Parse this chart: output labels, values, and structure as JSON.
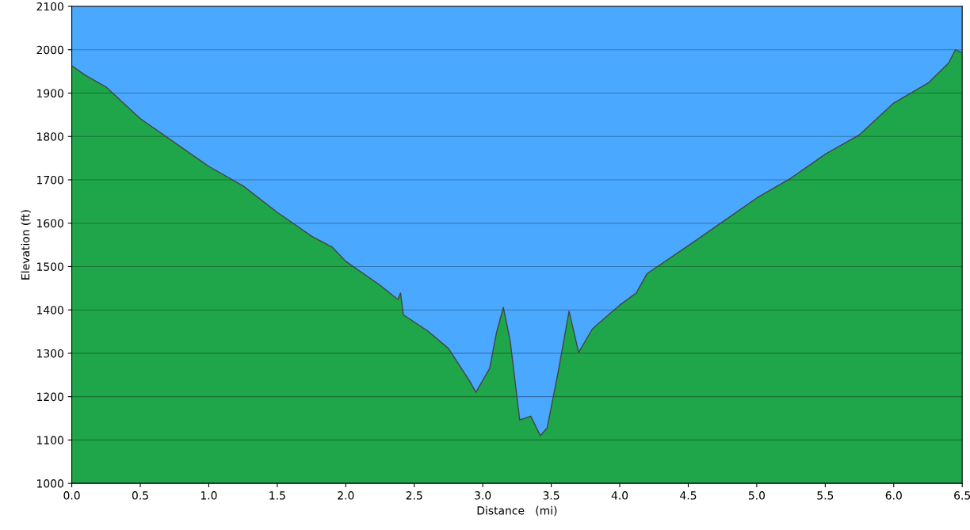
{
  "chart_data": {
    "type": "area",
    "xlabel": "Distance   (mi)",
    "ylabel": "Elevation (ft)",
    "x": [
      0.0,
      0.1,
      0.25,
      0.5,
      0.75,
      1.0,
      1.25,
      1.5,
      1.75,
      1.9,
      2.0,
      2.25,
      2.38,
      2.4,
      2.42,
      2.6,
      2.75,
      2.9,
      2.95,
      3.05,
      3.1,
      3.15,
      3.2,
      3.27,
      3.35,
      3.42,
      3.47,
      3.55,
      3.63,
      3.7,
      3.8,
      3.9,
      4.0,
      4.12,
      4.2,
      4.5,
      4.75,
      5.0,
      5.25,
      5.5,
      5.75,
      6.0,
      6.25,
      6.4,
      6.45,
      6.5
    ],
    "series": [
      {
        "color": "#1fa64a",
        "values": [
          1963,
          1941,
          1914,
          1841,
          1786,
          1731,
          1686,
          1625,
          1570,
          1545,
          1512,
          1457,
          1424,
          1439,
          1389,
          1351,
          1311,
          1238,
          1210,
          1265,
          1347,
          1406,
          1329,
          1146,
          1155,
          1110,
          1128,
          1256,
          1397,
          1302,
          1356,
          1384,
          1411,
          1439,
          1484,
          1548,
          1603,
          1658,
          1704,
          1759,
          1804,
          1877,
          1923,
          1969,
          2000,
          1993
        ]
      }
    ],
    "xlim": [
      0,
      6.5
    ],
    "ylim": [
      1000,
      2100
    ],
    "xticks": [
      {
        "value": 0,
        "label": "0.0"
      },
      0.5,
      {
        "value": 1,
        "label": "1.0"
      },
      1.5,
      {
        "value": 2,
        "label": "2.0"
      },
      2.5,
      {
        "value": 3,
        "label": "3.0"
      },
      3.5,
      {
        "value": 4,
        "label": "4.0"
      },
      4.5,
      {
        "value": 5,
        "label": "5.0"
      },
      5.5,
      {
        "value": 6,
        "label": "6.0"
      },
      6.5
    ],
    "yticks": [
      1000,
      1100,
      1200,
      1300,
      1400,
      1500,
      1600,
      1700,
      1800,
      1900,
      2000,
      2100
    ],
    "bands": [
      {
        "axis": "y",
        "from": 1000,
        "to": 2100,
        "color": "#4aa8ff"
      }
    ],
    "grid": "y"
  }
}
